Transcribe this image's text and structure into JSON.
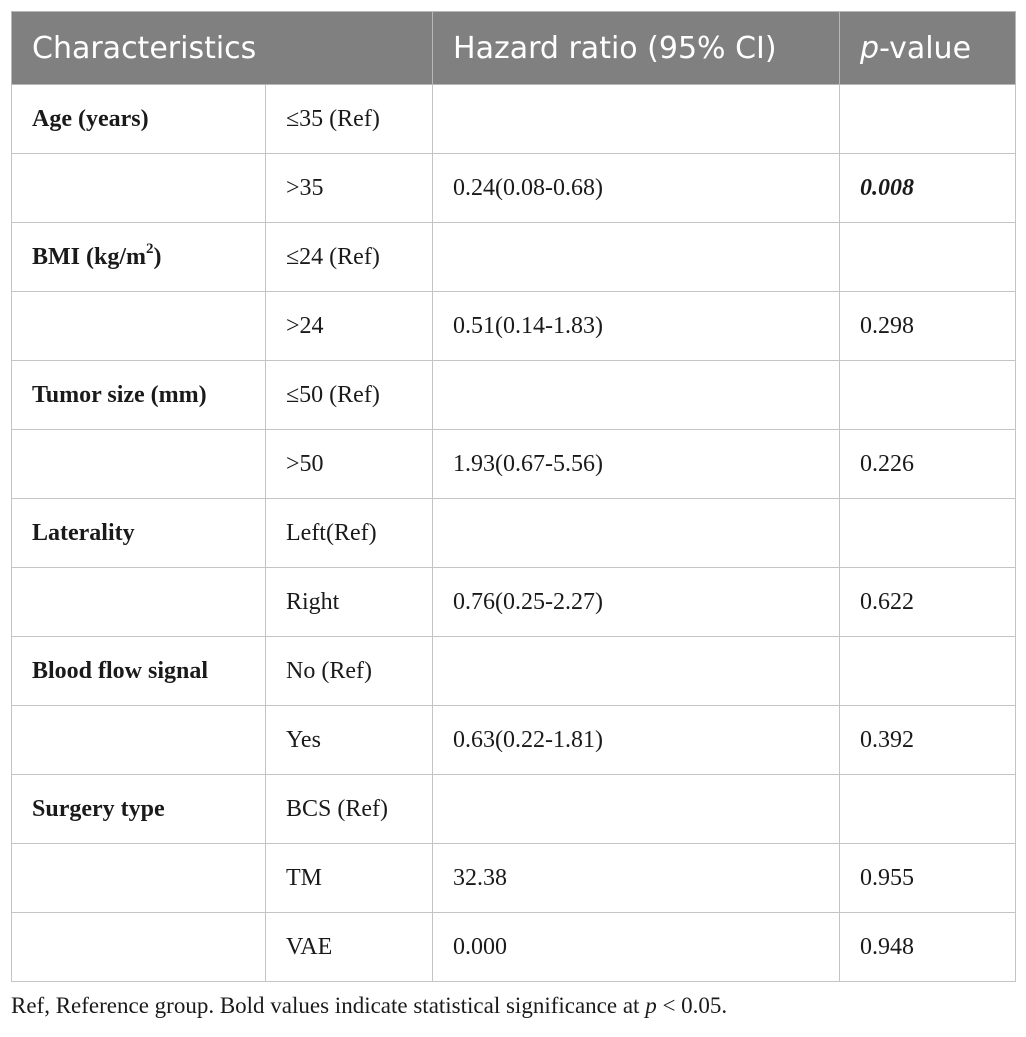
{
  "table": {
    "headers": {
      "characteristics": "Characteristics",
      "hazard_ratio": "Hazard ratio (95% CI)",
      "p_prefix": "p",
      "p_suffix": "-value"
    },
    "rows": [
      {
        "characteristic": "Age (years)",
        "group": "≤35 (Ref)",
        "hr": "",
        "p": ""
      },
      {
        "characteristic": "",
        "group": ">35",
        "hr": "0.24(0.08-0.68)",
        "p": "0.008",
        "significant": true
      },
      {
        "characteristic": "BMI (kg/m",
        "characteristic_sup": "2",
        "characteristic_end": ")",
        "group": "≤24 (Ref)",
        "hr": "",
        "p": ""
      },
      {
        "characteristic": "",
        "group": ">24",
        "hr": "0.51(0.14-1.83)",
        "p": "0.298"
      },
      {
        "characteristic": "Tumor size (mm)",
        "group": "≤50 (Ref)",
        "hr": "",
        "p": ""
      },
      {
        "characteristic": "",
        "group": ">50",
        "hr": "1.93(0.67-5.56)",
        "p": "0.226"
      },
      {
        "characteristic": "Laterality",
        "group": "Left(Ref)",
        "hr": "",
        "p": ""
      },
      {
        "characteristic": "",
        "group": "Right",
        "hr": "0.76(0.25-2.27)",
        "p": "0.622"
      },
      {
        "characteristic": "Blood flow signal",
        "group": "No (Ref)",
        "hr": "",
        "p": ""
      },
      {
        "characteristic": "",
        "group": "Yes",
        "hr": "0.63(0.22-1.81)",
        "p": "0.392"
      },
      {
        "characteristic": "Surgery type",
        "group": "BCS (Ref)",
        "hr": "",
        "p": ""
      },
      {
        "characteristic": "",
        "group": "TM",
        "hr": "32.38",
        "p": "0.955"
      },
      {
        "characteristic": "",
        "group": "VAE",
        "hr": "0.000",
        "p": "0.948"
      }
    ]
  },
  "footnote": {
    "part1": "Ref, Reference group. Bold values indicate statistical significance at ",
    "p_italic": "p",
    "part2": " < 0.05."
  },
  "colors": {
    "header_bg": "#808080",
    "header_text": "#ffffff",
    "grid": "#c4c4c4"
  }
}
